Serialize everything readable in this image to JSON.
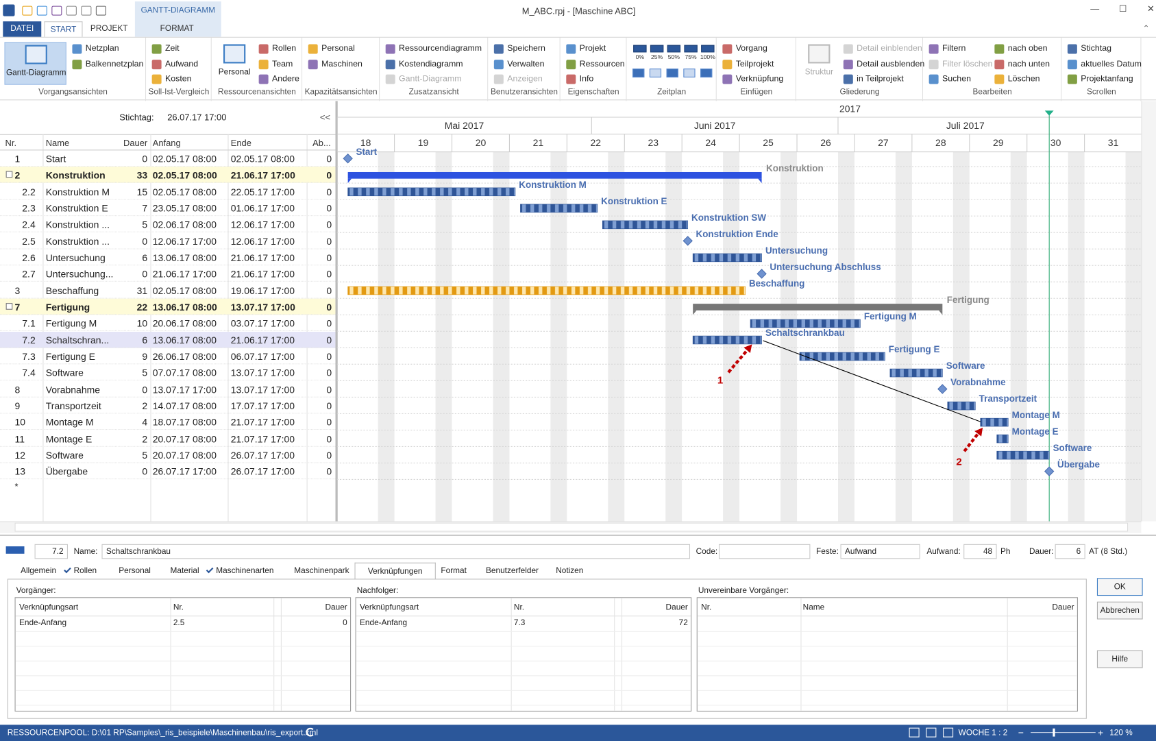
{
  "window": {
    "title": "M_ABC.rpj - [Maschine ABC]",
    "context_tab": "GANTT-DIAGRAMM",
    "tabs": [
      "DATEI",
      "START",
      "PROJEKT",
      "FORMAT"
    ],
    "active_tab": 1
  },
  "ribbon": [
    {
      "label": "Vorgangsansichten",
      "big": "Gantt-Diagramm",
      "items": [
        "Netzplan",
        "Balkennetzplan"
      ]
    },
    {
      "label": "Soll-Ist-Vergleich",
      "items": [
        "Zeit",
        "Aufwand",
        "Kosten"
      ]
    },
    {
      "label": "Ressourcenansichten",
      "big": "Personal",
      "items": [
        "Rollen",
        "Team",
        "Andere"
      ]
    },
    {
      "label": "Kapazitätsansichten",
      "items": [
        "Personal",
        "Maschinen"
      ]
    },
    {
      "label": "Zusatzansicht",
      "items": [
        "Ressourcendiagramm",
        "Kostendiagramm",
        "Gantt-Diagramm"
      ],
      "disabled": [
        2
      ]
    },
    {
      "label": "Benutzeransichten",
      "items": [
        "Speichern",
        "Verwalten",
        "Anzeigen"
      ],
      "disabled": [
        2
      ]
    },
    {
      "label": "Eigenschaften",
      "items": [
        "Projekt",
        "Ressourcen",
        "Info"
      ]
    },
    {
      "label": "Zeitplan",
      "items": [
        "0%",
        "25%",
        "50%",
        "75%",
        "100%"
      ]
    },
    {
      "label": "Einfügen",
      "items": [
        "Vorgang",
        "Teilprojekt",
        "Verknüpfung"
      ]
    },
    {
      "label": "Gliederung",
      "big": "Struktur",
      "items": [
        "Detail einblenden",
        "Detail ausblenden",
        "in Teilprojekt"
      ],
      "disabled": [
        0
      ],
      "big_disabled": true
    },
    {
      "label": "Bearbeiten",
      "items": [
        "Filtern",
        "Filter löschen",
        "Suchen",
        "nach oben",
        "nach unten",
        "Löschen"
      ],
      "disabled": [
        1
      ]
    },
    {
      "label": "Scrollen",
      "items": [
        "Stichtag",
        "aktuelles Datum",
        "Projektanfang"
      ]
    }
  ],
  "table": {
    "stichtag_label": "Stichtag:",
    "stichtag": "26.07.17 17:00",
    "collapse": "<<",
    "columns": [
      "Nr.",
      "Name",
      "Dauer",
      "Anfang",
      "Ende",
      "Ab..."
    ],
    "rows": [
      {
        "nr": "1",
        "name": "Start",
        "dauer": 0,
        "anfang": "02.05.17 08:00",
        "ende": "02.05.17 08:00",
        "ab": 0,
        "bar_label": "Start"
      },
      {
        "nr": "2",
        "name": "Konstruktion",
        "dauer": 33,
        "anfang": "02.05.17 08:00",
        "ende": "21.06.17 17:00",
        "ab": 0,
        "bar_label": "Konstruktion",
        "summary": true,
        "color": "#2d52e0"
      },
      {
        "nr": "2.2",
        "name": "Konstruktion M",
        "dauer": 15,
        "anfang": "02.05.17 08:00",
        "ende": "22.05.17 17:00",
        "ab": 0,
        "bar_label": "Konstruktion M"
      },
      {
        "nr": "2.3",
        "name": "Konstruktion E",
        "dauer": 7,
        "anfang": "23.05.17 08:00",
        "ende": "01.06.17 17:00",
        "ab": 0,
        "bar_label": "Konstruktion E"
      },
      {
        "nr": "2.4",
        "name": "Konstruktion ...",
        "dauer": 5,
        "anfang": "02.06.17 08:00",
        "ende": "12.06.17 17:00",
        "ab": 0,
        "bar_label": "Konstruktion SW"
      },
      {
        "nr": "2.5",
        "name": "Konstruktion ...",
        "dauer": 0,
        "anfang": "12.06.17 17:00",
        "ende": "12.06.17 17:00",
        "ab": 0,
        "bar_label": "Konstruktion Ende"
      },
      {
        "nr": "2.6",
        "name": "Untersuchung",
        "dauer": 6,
        "anfang": "13.06.17 08:00",
        "ende": "21.06.17 17:00",
        "ab": 0,
        "bar_label": "Untersuchung"
      },
      {
        "nr": "2.7",
        "name": "Untersuchung...",
        "dauer": 0,
        "anfang": "21.06.17 17:00",
        "ende": "21.06.17 17:00",
        "ab": 0,
        "bar_label": "Untersuchung Abschluss"
      },
      {
        "nr": "3",
        "name": "Beschaffung",
        "dauer": 31,
        "anfang": "02.05.17 08:00",
        "ende": "19.06.17 17:00",
        "ab": 0,
        "bar_label": "Beschaffung",
        "color": "#e39a12"
      },
      {
        "nr": "7",
        "name": "Fertigung",
        "dauer": 22,
        "anfang": "13.06.17 08:00",
        "ende": "13.07.17 17:00",
        "ab": 0,
        "bar_label": "Fertigung",
        "summary": true,
        "color": "#777777"
      },
      {
        "nr": "7.1",
        "name": "Fertigung M",
        "dauer": 10,
        "anfang": "20.06.17 08:00",
        "ende": "03.07.17 17:00",
        "ab": 0,
        "bar_label": "Fertigung M"
      },
      {
        "nr": "7.2",
        "name": "Schaltschran...",
        "dauer": 6,
        "anfang": "13.06.17 08:00",
        "ende": "21.06.17 17:00",
        "ab": 0,
        "bar_label": "Schaltschrankbau",
        "selected": true
      },
      {
        "nr": "7.3",
        "name": "Fertigung E",
        "dauer": 9,
        "anfang": "26.06.17 08:00",
        "ende": "06.07.17 17:00",
        "ab": 0,
        "bar_label": "Fertigung E"
      },
      {
        "nr": "7.4",
        "name": "Software",
        "dauer": 5,
        "anfang": "07.07.17 08:00",
        "ende": "13.07.17 17:00",
        "ab": 0,
        "bar_label": "Software"
      },
      {
        "nr": "8",
        "name": "Vorabnahme",
        "dauer": 0,
        "anfang": "13.07.17 17:00",
        "ende": "13.07.17 17:00",
        "ab": 0,
        "bar_label": "Vorabnahme"
      },
      {
        "nr": "9",
        "name": "Transportzeit",
        "dauer": 2,
        "anfang": "14.07.17 08:00",
        "ende": "17.07.17 17:00",
        "ab": 0,
        "bar_label": "Transportzeit"
      },
      {
        "nr": "10",
        "name": "Montage M",
        "dauer": 4,
        "anfang": "18.07.17 08:00",
        "ende": "21.07.17 17:00",
        "ab": 0,
        "bar_label": "Montage M"
      },
      {
        "nr": "11",
        "name": "Montage E",
        "dauer": 2,
        "anfang": "20.07.17 08:00",
        "ende": "21.07.17 17:00",
        "ab": 0,
        "bar_label": "Montage E"
      },
      {
        "nr": "12",
        "name": "Software",
        "dauer": 5,
        "anfang": "20.07.17 08:00",
        "ende": "26.07.17 17:00",
        "ab": 0,
        "bar_label": "Software"
      },
      {
        "nr": "13",
        "name": "Übergabe",
        "dauer": 0,
        "anfang": "26.07.17 17:00",
        "ende": "26.07.17 17:00",
        "ab": 0,
        "bar_label": "Übergabe"
      }
    ],
    "new_row": "*"
  },
  "gantt": {
    "year": "2017",
    "months": [
      "Mai 2017",
      "Juni 2017",
      "Juli 2017"
    ],
    "weeks": [
      18,
      19,
      20,
      21,
      22,
      23,
      24,
      25,
      26,
      27,
      28,
      29,
      30,
      31
    ],
    "annotations": [
      "1",
      "2"
    ]
  },
  "detail": {
    "id": "7.2",
    "name_label": "Name:",
    "name": "Schaltschrankbau",
    "code_label": "Code:",
    "feste_label": "Feste:",
    "feste": "Aufwand",
    "aufwand_label": "Aufwand:",
    "aufwand": 48,
    "aufwand_unit": "Ph",
    "dauer_label": "Dauer:",
    "dauer": 6,
    "dauer_unit": "AT (8 Std.)",
    "tabs": [
      "Allgemein",
      "Rollen",
      "Personal",
      "Material",
      "Maschinenarten",
      "Maschinenpark",
      "Verknüpfungen",
      "Format",
      "Benutzerfelder",
      "Notizen"
    ],
    "checked_tabs": [
      1,
      4
    ],
    "active_tab": 6,
    "grids": [
      {
        "title": "Vorgänger:",
        "columns": [
          "Verknüpfungsart",
          "Nr.",
          "Dauer"
        ],
        "rows": [
          [
            "Ende-Anfang",
            "2.5",
            0
          ]
        ]
      },
      {
        "title": "Nachfolger:",
        "columns": [
          "Verknüpfungsart",
          "Nr.",
          "Dauer"
        ],
        "rows": [
          [
            "Ende-Anfang",
            "7.3",
            72
          ]
        ]
      },
      {
        "title": "Unvereinbare Vorgänger:",
        "columns": [
          "Nr.",
          "Name",
          "Dauer"
        ],
        "rows": []
      }
    ],
    "buttons": [
      "OK",
      "Abbrechen",
      "Hilfe"
    ]
  },
  "statusbar": {
    "pool": "RESSOURCENPOOL: D:\\01 RP\\Samples\\_ris_beispiele\\Maschinenbau\\ris_export.xml",
    "week": "WOCHE 1 : 2",
    "zoom": "120 %"
  }
}
